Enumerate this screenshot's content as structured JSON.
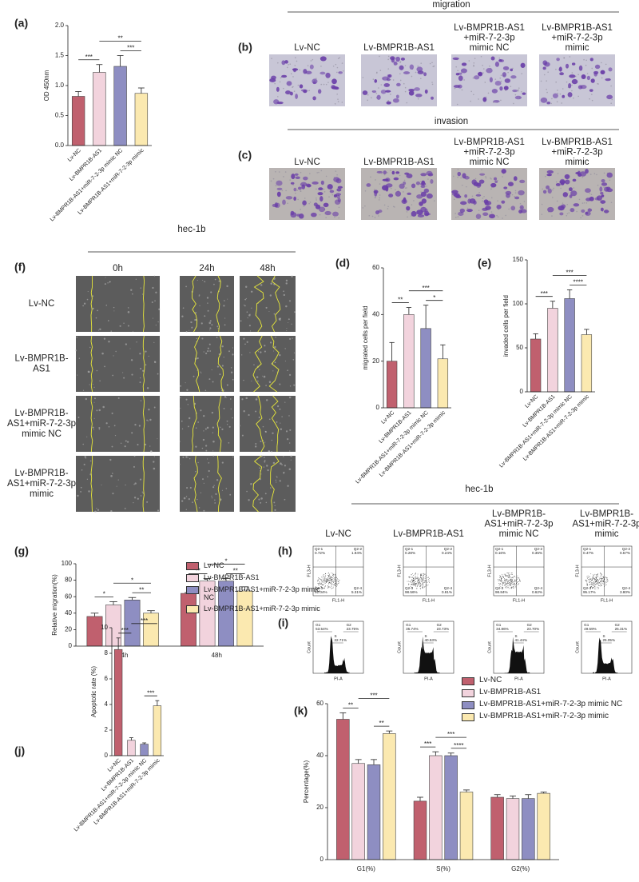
{
  "panels": {
    "a": "(a)",
    "b": "(b)",
    "c": "(c)",
    "d": "(d)",
    "e": "(e)",
    "f": "(f)",
    "g": "(g)",
    "h": "(h)",
    "i": "(i)",
    "j": "(j)",
    "k": "(k)"
  },
  "images": {
    "migration_title": "migration",
    "invasion_title": "invasion",
    "columns": [
      [
        "Lv-NC"
      ],
      [
        "Lv-BMPR1B-AS1"
      ],
      [
        "Lv-BMPR1B-AS1",
        "+miR-7-2-3p",
        "mimic NC"
      ],
      [
        "Lv-BMPR1B-AS1",
        "+miR-7-2-3p",
        "mimic"
      ]
    ]
  },
  "wound": {
    "title": "hec-1b",
    "times": [
      "0h",
      "24h",
      "48h"
    ],
    "rows": [
      [
        "Lv-NC"
      ],
      [
        "Lv-BMPR1B-",
        "AS1"
      ],
      [
        "Lv-BMPR1B-",
        "AS1+miR-7-2-3p",
        "mimic NC"
      ],
      [
        "Lv-BMPR1B-",
        "AS1+miR-7-2-3p",
        "mimic"
      ]
    ]
  },
  "flow": {
    "title": "hec-1b",
    "columns": [
      [
        "Lv-NC"
      ],
      [
        "Lv-BMPR1B-AS1"
      ],
      [
        "Lv-BMPR1B-",
        "AS1+miR-7-2-3p",
        "mimic NC"
      ],
      [
        "Lv-BMPR1B-",
        "AS1+miR-7-2-3p",
        "mimic"
      ]
    ],
    "scatter_x_label": "FL1-H",
    "scatter_y_label": "FL3-H",
    "cycle_x_label": "PI-A",
    "cycle_y_label": "Count",
    "scatter": [
      [
        [
          "Q2-1",
          "0.72%"
        ],
        [
          "Q2-2",
          "1.94%"
        ],
        [
          "Q2-3",
          "92.04%"
        ],
        [
          "Q2-4",
          "5.31%"
        ]
      ],
      [
        [
          "Q2-1",
          "0.28%"
        ],
        [
          "Q2-2",
          "0.24%"
        ],
        [
          "Q2-3",
          "98.56%"
        ],
        [
          "Q2-4",
          "0.81%"
        ]
      ],
      [
        [
          "Q2-1",
          "0.16%"
        ],
        [
          "Q2-2",
          "0.35%"
        ],
        [
          "Q2-3",
          "98.84%"
        ],
        [
          "Q2-4",
          "0.62%"
        ]
      ],
      [
        [
          "Q2-1",
          "0.47%"
        ],
        [
          "Q2-2",
          "0.57%"
        ],
        [
          "Q2-3",
          "95.17%"
        ],
        [
          "Q2-4",
          "3.80%"
        ]
      ]
    ],
    "cycle": [
      [
        [
          "G1",
          "53.54%"
        ],
        [
          "S",
          "22.71%"
        ],
        [
          "G2",
          "23.75%"
        ]
      ],
      [
        [
          "G1",
          "35.74%"
        ],
        [
          "S",
          "40.53%"
        ],
        [
          "G2",
          "23.73%"
        ]
      ],
      [
        [
          "G1",
          "34.86%"
        ],
        [
          "S",
          "41.44%"
        ],
        [
          "G2",
          "23.70%"
        ]
      ],
      [
        [
          "G1",
          "49.59%"
        ],
        [
          "S",
          "25.05%"
        ],
        [
          "G2",
          "25.31%"
        ]
      ]
    ]
  },
  "chart_data": [
    {
      "type": "bar",
      "ylabel": "OD 450nm",
      "categories": [
        "Lv-NC",
        "Lv-BMPR1B-AS1",
        "Lv-BMPR1B-AS1+miR-7-2-3p mimic NC",
        "Lv-BMPR1B-AS1+miR-7-2-3p mimic"
      ],
      "values": [
        0.82,
        1.22,
        1.32,
        0.87
      ],
      "errors": [
        0.08,
        0.13,
        0.18,
        0.09
      ],
      "colors": [
        "#c0606e",
        "#f2d3dd",
        "#8e8ec2",
        "#fbe9b0"
      ],
      "ylim": [
        0,
        2.0
      ],
      "yticks": [
        {
          "value": 0,
          "label": "0.0"
        },
        {
          "value": 0.5,
          "label": "0.5"
        },
        {
          "value": 1.0,
          "label": "1.0"
        },
        {
          "value": 1.5,
          "label": "1.5"
        },
        {
          "value": 2.0,
          "label": "2.0"
        }
      ],
      "annotations": [
        {
          "text": "***",
          "from": 0,
          "to": 1
        },
        {
          "text": "***",
          "from": 2,
          "to": 3
        },
        {
          "text": "**",
          "from": 1,
          "to": 3
        }
      ]
    },
    {
      "type": "bar",
      "ylabel": "migrated cells per field",
      "categories": [
        "Lv-NC",
        "Lv-BMPR1B-AS1",
        "Lv-BMPR1B-AS1+miR-7-2-3p mimic NC",
        "Lv-BMPR1B-AS1+miR-7-2-3p mimic"
      ],
      "values": [
        20,
        40,
        34,
        21
      ],
      "errors": [
        8,
        3,
        10,
        6
      ],
      "colors": [
        "#c0606e",
        "#f2d3dd",
        "#8e8ec2",
        "#fbe9b0"
      ],
      "ylim": [
        0,
        60
      ],
      "yticks": [
        0,
        20,
        40,
        60
      ],
      "annotations": [
        {
          "text": "**",
          "from": 0,
          "to": 1
        },
        {
          "text": "*",
          "from": 2,
          "to": 3
        },
        {
          "text": "***",
          "from": 1,
          "to": 3
        }
      ]
    },
    {
      "type": "bar",
      "ylabel": "invaded cells per field",
      "categories": [
        "Lv-NC",
        "Lv-BMPR1B-AS1",
        "Lv-BMPR1B-AS1+miR-7-2-3p mimic NC",
        "Lv-BMPR1B-AS1+miR-7-2-3p mimic"
      ],
      "values": [
        60,
        95,
        106,
        65
      ],
      "errors": [
        6,
        8,
        10,
        6
      ],
      "colors": [
        "#c0606e",
        "#f2d3dd",
        "#8e8ec2",
        "#fbe9b0"
      ],
      "ylim": [
        0,
        150
      ],
      "yticks": [
        0,
        50,
        100,
        150
      ],
      "annotations": [
        {
          "text": "***",
          "from": 0,
          "to": 1
        },
        {
          "text": "****",
          "from": 2,
          "to": 3
        },
        {
          "text": "***",
          "from": 1,
          "to": 3
        }
      ]
    },
    {
      "type": "bar",
      "ylabel": "Relative migration(%)",
      "categories": [
        "24h",
        "48h"
      ],
      "series": [
        {
          "name": "Lv-NC",
          "color": "#c0606e",
          "values": [
            36,
            64
          ],
          "errors": [
            4,
            1
          ]
        },
        {
          "name": "Lv-BMPR1B-AS1",
          "color": "#f2d3dd",
          "values": [
            50,
            79
          ],
          "errors": [
            4,
            3
          ]
        },
        {
          "name": "Lv-BMPR1B-AS1+miR-7-2-3p mimic NC",
          "color": "#8e8ec2",
          "values": [
            56,
            79
          ],
          "errors": [
            3,
            3
          ]
        },
        {
          "name": "Lv-BMPR1B-AS1+miR-7-2-3p mimic",
          "color": "#fbe9b0",
          "values": [
            40,
            67
          ],
          "errors": [
            3,
            5
          ]
        }
      ],
      "ylim": [
        0,
        100
      ],
      "yticks": [
        0,
        20,
        40,
        60,
        80,
        100
      ],
      "annotations": [
        [
          {
            "text": "*",
            "from": 0,
            "to": 1
          },
          {
            "text": "**",
            "from": 2,
            "to": 3
          },
          {
            "text": "*",
            "from": 1,
            "to": 3
          }
        ],
        [
          {
            "text": "**",
            "from": 0,
            "to": 1
          },
          {
            "text": "**",
            "from": 2,
            "to": 3
          },
          {
            "text": "*",
            "from": 1,
            "to": 3
          }
        ]
      ]
    },
    {
      "type": "bar",
      "ylabel": "Apoptotic rate  (%)",
      "categories": [
        "Lv-NC",
        "Lv-BMPR1B-AS1",
        "Lv-BMPR1B-AS1+miR-7-2-3p mimic NC",
        "Lv-BMPR1B-AS1+miR-7-2-3p mimic"
      ],
      "values": [
        8.3,
        1.2,
        0.9,
        3.9
      ],
      "errors": [
        0.9,
        0.2,
        0.1,
        0.4
      ],
      "colors": [
        "#c0606e",
        "#f2d3dd",
        "#8e8ec2",
        "#fbe9b0"
      ],
      "ylim": [
        0,
        10
      ],
      "yticks": [
        0,
        2,
        4,
        6,
        8,
        10
      ],
      "annotations": [
        {
          "text": "***",
          "from": 0,
          "to": 1
        },
        {
          "text": "***",
          "from": 2,
          "to": 3
        },
        {
          "text": "***",
          "from": 1,
          "to": 3
        }
      ]
    },
    {
      "type": "bar",
      "ylabel": "Percentage(%)",
      "categories": [
        "G1(%)",
        "S(%)",
        "G2(%)"
      ],
      "series": [
        {
          "name": "Lv-NC",
          "color": "#c0606e",
          "values": [
            54,
            22.5,
            24
          ],
          "errors": [
            2.5,
            1.5,
            1
          ]
        },
        {
          "name": "Lv-BMPR1B-AS1",
          "color": "#f2d3dd",
          "values": [
            37,
            40,
            23.5
          ],
          "errors": [
            1.5,
            1.5,
            1
          ]
        },
        {
          "name": "Lv-BMPR1B-AS1+miR-7-2-3p mimic NC",
          "color": "#8e8ec2",
          "values": [
            36.5,
            40,
            23.5
          ],
          "errors": [
            2,
            1,
            1.5
          ]
        },
        {
          "name": "Lv-BMPR1B-AS1+miR-7-2-3p mimic",
          "color": "#fbe9b0",
          "values": [
            48.5,
            26,
            25.5
          ],
          "errors": [
            1,
            0.8,
            0.5
          ]
        }
      ],
      "ylim": [
        0,
        60
      ],
      "yticks": [
        0,
        20,
        40,
        60
      ],
      "annotations": [
        [
          {
            "text": "**",
            "from": 0,
            "to": 1
          },
          {
            "text": "**",
            "from": 2,
            "to": 3
          },
          {
            "text": "***",
            "from": 1,
            "to": 3
          }
        ],
        [
          {
            "text": "***",
            "from": 0,
            "to": 1
          },
          {
            "text": "****",
            "from": 2,
            "to": 3
          },
          {
            "text": "***",
            "from": 1,
            "to": 3
          }
        ],
        []
      ]
    }
  ]
}
